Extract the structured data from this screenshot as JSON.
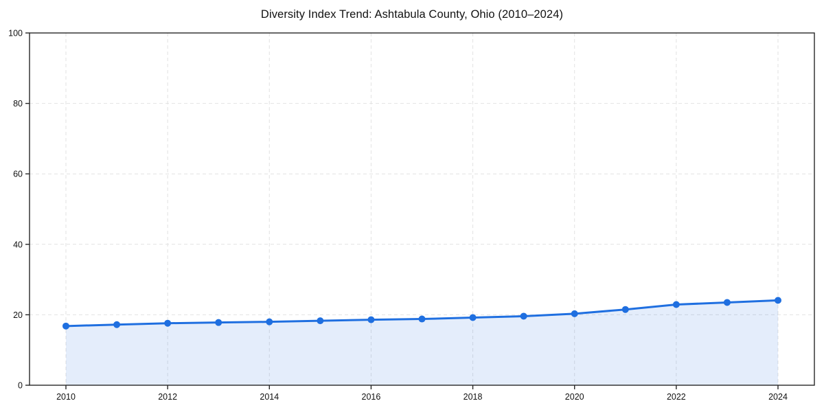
{
  "page": {
    "background_color": "#ffffff"
  },
  "chart_data": {
    "type": "line",
    "title": "Diversity Index Trend: Ashtabula County, Ohio (2010–2024)",
    "x": [
      2010,
      2011,
      2012,
      2013,
      2014,
      2015,
      2016,
      2017,
      2018,
      2019,
      2020,
      2021,
      2022,
      2023,
      2024
    ],
    "series": [
      {
        "name": "Diversity Index",
        "values": [
          16.8,
          17.2,
          17.6,
          17.8,
          18.0,
          18.3,
          18.6,
          18.8,
          19.2,
          19.6,
          20.3,
          21.5,
          22.9,
          23.5,
          24.1
        ]
      }
    ],
    "xlabel": "",
    "ylabel": "",
    "ylim": [
      0,
      100
    ],
    "yticks": [
      0,
      20,
      40,
      60,
      80,
      100
    ],
    "xticks": [
      2010,
      2012,
      2014,
      2016,
      2018,
      2020,
      2022,
      2024
    ],
    "grid": true,
    "grid_style": "dashed",
    "legend_position": "none",
    "line_color": "#1f6fe0",
    "marker": "circle",
    "marker_size": 5,
    "fill_color": "#1f6fe0",
    "fill_opacity": 0.12,
    "grid_color": "#e2e2e2",
    "spine_color": "#262626",
    "tick_label_color": "#111111"
  }
}
